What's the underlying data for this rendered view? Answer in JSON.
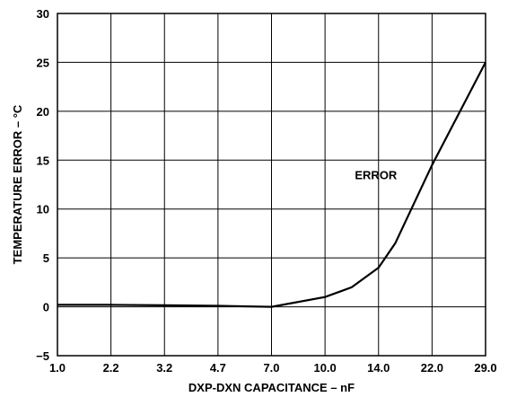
{
  "chart_data": {
    "type": "line",
    "title": "",
    "xlabel": "DXP-DXN CAPACITANCE – nF",
    "ylabel": "TEMPERATURE ERROR – °C",
    "x_scale": "categorical-evenly-spaced",
    "categories": [
      "1.0",
      "2.2",
      "3.2",
      "4.7",
      "7.0",
      "10.0",
      "14.0",
      "22.0",
      "29.0"
    ],
    "ylim": [
      -5,
      30
    ],
    "yticks": [
      -5,
      0,
      5,
      10,
      15,
      20,
      25,
      30
    ],
    "grid": true,
    "legend": "none",
    "annotations": [
      {
        "text": "ERROR",
        "x": 22.0,
        "y": 13.5
      }
    ],
    "series": [
      {
        "x": [
          1.0,
          2.2,
          3.2,
          4.7,
          7.0,
          10.0,
          12.0,
          14.0,
          16.5,
          22.0,
          29.0
        ],
        "values": [
          0.2,
          0.2,
          0.15,
          0.1,
          0.0,
          1.0,
          2.0,
          4.0,
          6.5,
          14.5,
          25.0
        ]
      }
    ]
  }
}
